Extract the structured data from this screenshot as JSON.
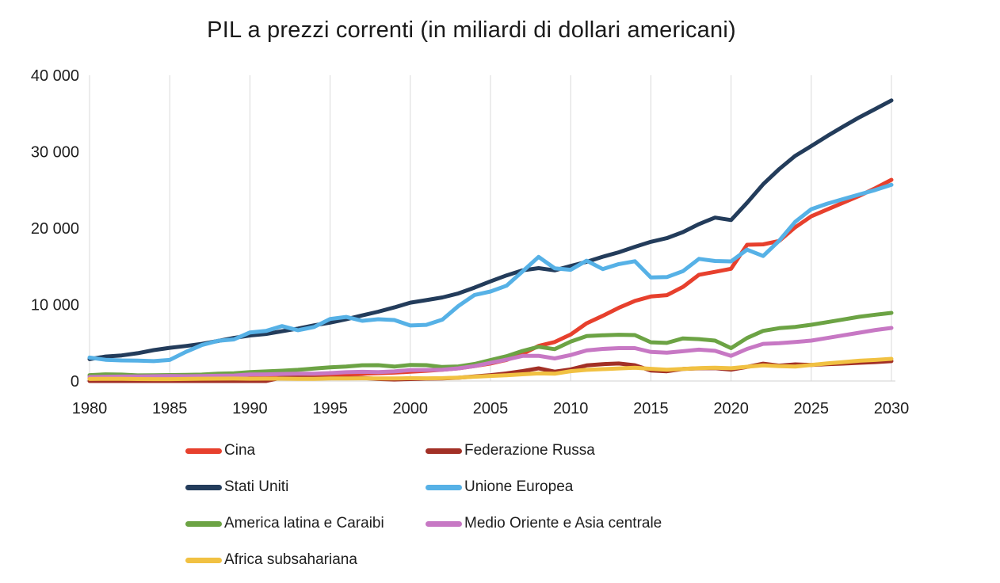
{
  "chart_data": {
    "type": "line",
    "title": "PIL a prezzi correnti (in miliardi di dollari americani)",
    "xlabel": "",
    "ylabel": "",
    "xlim": [
      1980,
      2030
    ],
    "ylim": [
      0,
      40000
    ],
    "x_ticks": [
      1980,
      1985,
      1990,
      1995,
      2000,
      2005,
      2010,
      2015,
      2020,
      2025,
      2030
    ],
    "y_ticks": [
      0,
      10000,
      20000,
      30000,
      40000
    ],
    "y_tick_labels": [
      "0",
      "10 000",
      "20 000",
      "30 000",
      "40 000"
    ],
    "grid": "vertical-only",
    "gridline_color": "#D9D9D9",
    "axis_line_color": "#D9D9D9",
    "legend_position": "bottom-two-columns",
    "x": [
      1980,
      1981,
      1982,
      1983,
      1984,
      1985,
      1986,
      1987,
      1988,
      1989,
      1990,
      1991,
      1992,
      1993,
      1994,
      1995,
      1996,
      1997,
      1998,
      1999,
      2000,
      2001,
      2002,
      2003,
      2004,
      2005,
      2006,
      2007,
      2008,
      2009,
      2010,
      2011,
      2012,
      2013,
      2014,
      2015,
      2016,
      2017,
      2018,
      2019,
      2020,
      2021,
      2022,
      2023,
      2024,
      2025,
      2026,
      2027,
      2028,
      2029,
      2030
    ],
    "series": [
      {
        "name": "Cina",
        "color": "#E7402D",
        "values": [
          303,
          289,
          284,
          305,
          314,
          312,
          301,
          329,
          414,
          464,
          396,
          413,
          493,
          617,
          561,
          734,
          863,
          961,
          1029,
          1094,
          1211,
          1339,
          1471,
          1660,
          1955,
          2286,
          2752,
          3550,
          4594,
          5102,
          6087,
          7552,
          8532,
          9570,
          10476,
          11062,
          11233,
          12310,
          13895,
          14280,
          14688,
          17820,
          17880,
          18320,
          20110,
          21540,
          22450,
          23340,
          24230,
          25230,
          26320
        ]
      },
      {
        "name": "Federazione Russa",
        "color": "#A23026",
        "values": [
          0,
          0,
          0,
          0,
          0,
          0,
          0,
          0,
          0,
          0,
          0,
          0,
          460,
          435,
          395,
          396,
          392,
          405,
          271,
          196,
          260,
          307,
          345,
          430,
          591,
          764,
          990,
          1300,
          1661,
          1223,
          1525,
          2045,
          2208,
          2292,
          2059,
          1363,
          1277,
          1574,
          1657,
          1690,
          1490,
          1840,
          2270,
          2010,
          2180,
          2100,
          2200,
          2280,
          2380,
          2480,
          2600
        ]
      },
      {
        "name": "Stati Uniti",
        "color": "#233C5B",
        "values": [
          2857,
          3207,
          3344,
          3634,
          4038,
          4339,
          4580,
          4855,
          5236,
          5642,
          5963,
          6158,
          6520,
          6859,
          7287,
          7640,
          8073,
          8578,
          9063,
          9631,
          10251,
          10582,
          10936,
          11458,
          12214,
          13037,
          13815,
          14474,
          14770,
          14478,
          15049,
          15600,
          16254,
          16843,
          17551,
          18206,
          18695,
          19477,
          20533,
          21381,
          21060,
          23315,
          25744,
          27721,
          29460,
          30740,
          32050,
          33300,
          34500,
          35600,
          36700
        ]
      },
      {
        "name": "Unione Europea",
        "color": "#56B1E6",
        "values": [
          3063,
          2773,
          2697,
          2663,
          2599,
          2760,
          3800,
          4700,
          5250,
          5440,
          6350,
          6550,
          7180,
          6640,
          7070,
          8110,
          8380,
          7880,
          8080,
          7980,
          7260,
          7350,
          8030,
          9810,
          11250,
          11710,
          12470,
          14340,
          16240,
          14750,
          14550,
          15740,
          14640,
          15300,
          15670,
          13550,
          13600,
          14370,
          15980,
          15700,
          15650,
          17180,
          16350,
          18350,
          20830,
          22480,
          23200,
          23800,
          24400,
          25000,
          25670
        ]
      },
      {
        "name": "America latina e Caraibi",
        "color": "#6CA344",
        "values": [
          770,
          870,
          840,
          740,
          750,
          780,
          800,
          840,
          950,
          1020,
          1170,
          1250,
          1350,
          1460,
          1640,
          1790,
          1900,
          2060,
          2070,
          1890,
          2100,
          2070,
          1830,
          1910,
          2230,
          2750,
          3240,
          3940,
          4480,
          4170,
          5160,
          5880,
          5980,
          6050,
          6010,
          5070,
          4980,
          5570,
          5480,
          5280,
          4300,
          5630,
          6560,
          6910,
          7080,
          7360,
          7700,
          8050,
          8400,
          8670,
          8910
        ]
      },
      {
        "name": "Medio Oriente e Asia centrale",
        "color": "#C778C4",
        "values": [
          520,
          560,
          580,
          600,
          620,
          640,
          620,
          650,
          680,
          710,
          850,
          870,
          920,
          950,
          960,
          1040,
          1150,
          1200,
          1160,
          1250,
          1430,
          1440,
          1480,
          1660,
          1950,
          2370,
          2800,
          3280,
          3300,
          2950,
          3400,
          4000,
          4200,
          4300,
          4300,
          3800,
          3700,
          3900,
          4100,
          3950,
          3300,
          4200,
          4860,
          4940,
          5110,
          5280,
          5630,
          5980,
          6320,
          6670,
          6940
        ]
      },
      {
        "name": "Africa subsahariana",
        "color": "#F1C142",
        "values": [
          271,
          290,
          280,
          260,
          250,
          250,
          270,
          300,
          310,
          320,
          300,
          310,
          310,
          290,
          280,
          330,
          340,
          350,
          330,
          330,
          370,
          350,
          370,
          450,
          560,
          660,
          760,
          880,
          1000,
          950,
          1290,
          1460,
          1550,
          1650,
          1740,
          1600,
          1470,
          1590,
          1690,
          1740,
          1670,
          1870,
          2050,
          1950,
          1900,
          2100,
          2300,
          2480,
          2650,
          2760,
          2900
        ]
      }
    ]
  }
}
